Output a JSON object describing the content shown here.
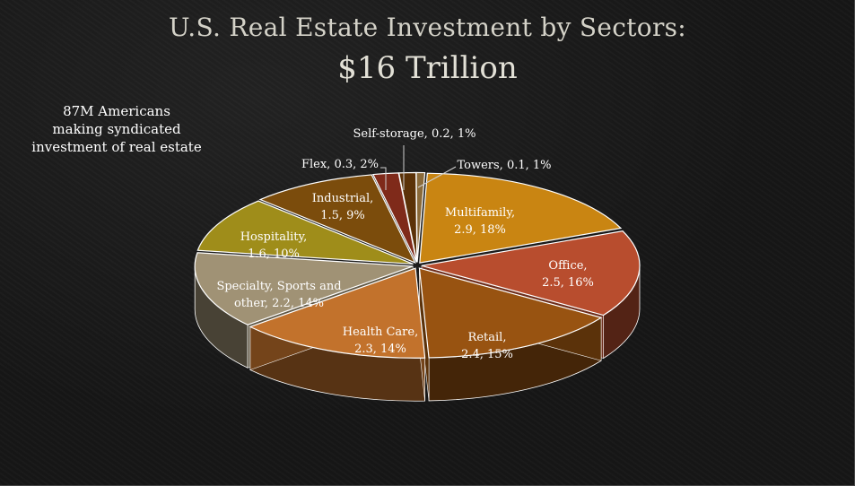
{
  "title_line1": "U.S. Real Estate Investment by Sectors:",
  "title_line2": "$16 Trillion",
  "side_note": [
    "87M Americans",
    "making syndicated",
    "investment of real estate"
  ],
  "chart_data": {
    "type": "pie",
    "title": "U.S. Real Estate Investment by Sectors: $16 Trillion",
    "unit": "Trillion",
    "slices": [
      {
        "name": "Multifamily",
        "value": 2.9,
        "percent": "18%",
        "color": "#c98512",
        "label": [
          "Multifamily,",
          "2.9, 18%"
        ]
      },
      {
        "name": "Office",
        "value": 2.5,
        "percent": "16%",
        "color": "#b84d2e",
        "label": [
          "Office,",
          "2.5, 16%"
        ]
      },
      {
        "name": "Retail",
        "value": 2.4,
        "percent": "15%",
        "color": "#985311",
        "label": [
          "Retail,",
          "2.4, 15%"
        ]
      },
      {
        "name": "Health Care",
        "value": 2.3,
        "percent": "14%",
        "color": "#c2722c",
        "label": [
          "Health Care,",
          "2.3, 14%"
        ]
      },
      {
        "name": "Specialty, Sports and other",
        "value": 2.2,
        "percent": "14%",
        "color": "#a09275",
        "label": [
          "Specialty, Sports and",
          "other, 2.2, 14%"
        ]
      },
      {
        "name": "Hospitality",
        "value": 1.6,
        "percent": "10%",
        "color": "#9f8d1a",
        "label": [
          "Hospitality,",
          "1.6, 10%"
        ]
      },
      {
        "name": "Industrial",
        "value": 1.5,
        "percent": "9%",
        "color": "#7b4c0c",
        "label": [
          "Industrial,",
          "1.5, 9%"
        ]
      },
      {
        "name": "Flex",
        "value": 0.3,
        "percent": "2%",
        "color": "#7f2a1a",
        "label": [
          "Flex, 0.3, 2%"
        ]
      },
      {
        "name": "Self-storage",
        "value": 0.2,
        "percent": "1%",
        "color": "#5b3208",
        "label": [
          "Self-storage, 0.2, 1%"
        ]
      },
      {
        "name": "Towers",
        "value": 0.1,
        "percent": "1%",
        "color": "#8a6a3a",
        "label": [
          "Towers, 0.1, 1%"
        ]
      }
    ]
  }
}
